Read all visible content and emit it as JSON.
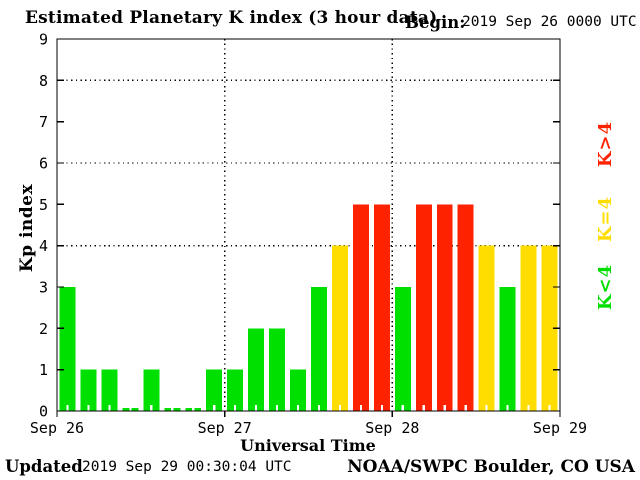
{
  "header": {
    "title": "Estimated Planetary K index (3 hour data)",
    "begin_label": "Begin:",
    "begin_value": "2019 Sep 26 0000 UTC"
  },
  "chart_data": {
    "type": "bar",
    "title": "Estimated Planetary K index (3 hour data)",
    "xlabel": "Universal Time",
    "ylabel": "Kp index",
    "ylim": [
      0,
      9
    ],
    "yticks": [
      0,
      1,
      2,
      3,
      4,
      5,
      6,
      7,
      8,
      9
    ],
    "dotted_hlines": [
      4,
      6,
      8
    ],
    "bars_per_day": 8,
    "hours_per_bar": 3,
    "day_labels": [
      "Sep 26",
      "Sep 27",
      "Sep 28",
      "Sep 29"
    ],
    "series": [
      {
        "day": "Sep 26",
        "values": [
          3,
          1,
          1,
          0,
          1,
          0,
          0,
          1
        ]
      },
      {
        "day": "Sep 27",
        "values": [
          1,
          2,
          2,
          1,
          3,
          4,
          5,
          5
        ]
      },
      {
        "day": "Sep 28",
        "values": [
          3,
          5,
          5,
          5,
          4,
          3,
          4,
          4
        ]
      }
    ],
    "color_rule": "green below 4, yellow equal 4, red above 4",
    "colors": {
      "below_4": "#00e000",
      "equal_4": "#ffdd00",
      "above_4": "#ff2200"
    },
    "legend": [
      {
        "label": "K>4",
        "color": "#ff2200"
      },
      {
        "label": "K=4",
        "color": "#ffdd00"
      },
      {
        "label": "K<4",
        "color": "#00e000"
      }
    ],
    "grid": "dotted horizontal at 4,6,8 and dotted vertical at day boundaries",
    "legend_position": "right, rotated 90deg"
  },
  "footer": {
    "updated_label": "Updated",
    "updated_value": "2019 Sep 29 00:30:04 UTC",
    "source": "NOAA/SWPC Boulder, CO USA"
  }
}
